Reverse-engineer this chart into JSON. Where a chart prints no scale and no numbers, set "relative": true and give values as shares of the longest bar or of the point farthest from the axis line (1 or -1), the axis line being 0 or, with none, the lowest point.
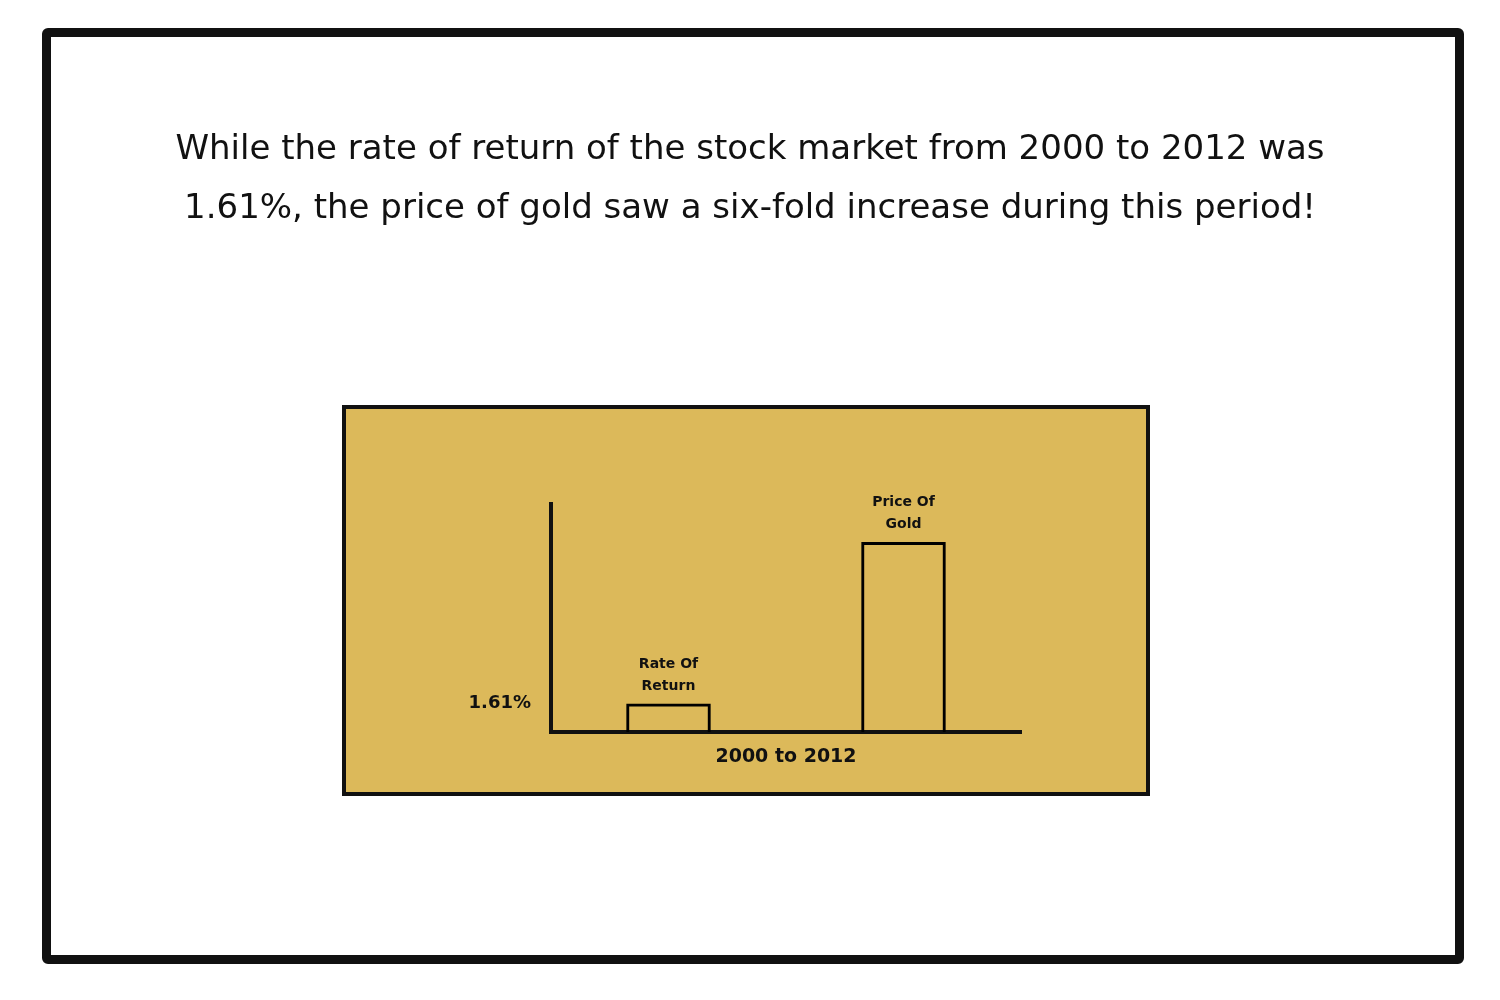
{
  "chart_data": {
    "type": "bar",
    "title": "While the rate of return of the stock market from 2000 to 2012 was 1.61%, the price of gold saw a six-fold increase during this period!",
    "categories": [
      "Rate Of Return",
      "Price Of Gold"
    ],
    "values": [
      0.15,
      1
    ],
    "color": "#000000",
    "relative": true,
    "xlabel": "2000 to 2012",
    "annotations": [
      "1.61%"
    ],
    "grid": false,
    "legend": false
  }
}
